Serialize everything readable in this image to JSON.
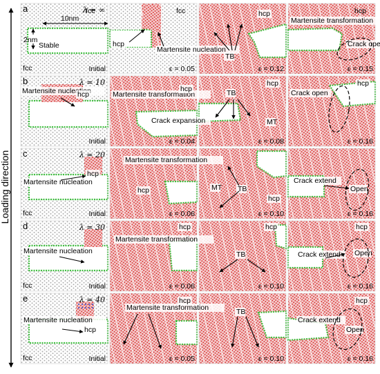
{
  "loading_direction": "Loading direction",
  "rows": [
    {
      "letter": "a",
      "lambda": "λ = ∞",
      "panels": [
        {
          "label": "Initial",
          "structure": "initial",
          "notes": [
            "fcc",
            "fcc",
            "Stable",
            "10nm",
            "2nm"
          ]
        },
        {
          "label": "ε = 0.05",
          "structure": "hcp",
          "notes": [
            "fcc",
            "hcp",
            "Martensite nucleation"
          ]
        },
        {
          "label": "ε = 0.12",
          "structure": "hcp",
          "notes": [
            "hcp",
            "TB"
          ]
        },
        {
          "label": "ε = 0.15",
          "structure": "hcp",
          "notes": [
            "hcp",
            "Martensite transformation",
            "Crack open"
          ]
        }
      ]
    },
    {
      "letter": "b",
      "lambda": "λ = 10",
      "panels": [
        {
          "label": "Initial",
          "structure": "initial",
          "notes": [
            "Martensite nucleation",
            "hcp"
          ]
        },
        {
          "label": "ε = 0.04",
          "structure": "hcp",
          "notes": [
            "Martensite transformation",
            "hcp",
            "Crack expansion"
          ]
        },
        {
          "label": "ε = 0.08",
          "structure": "hcp",
          "notes": [
            "TB",
            "hcp",
            "MT"
          ]
        },
        {
          "label": "ε = 0.16",
          "structure": "hcp",
          "notes": [
            "hcp",
            "Crack open"
          ]
        }
      ]
    },
    {
      "letter": "c",
      "lambda": "λ = 20",
      "panels": [
        {
          "label": "Initial",
          "structure": "initial",
          "notes": [
            "hcp",
            "Martensite nucleation",
            "fcc"
          ]
        },
        {
          "label": "ε = 0.06",
          "structure": "hcp",
          "notes": [
            "Martensite transformation",
            "hcp"
          ]
        },
        {
          "label": "ε = 0.10",
          "structure": "hcp",
          "notes": [
            "MT",
            "TB",
            "hcp"
          ]
        },
        {
          "label": "ε = 0.16",
          "structure": "hcp",
          "notes": [
            "Crack extend",
            "Open"
          ]
        }
      ]
    },
    {
      "letter": "d",
      "lambda": "λ = 30",
      "panels": [
        {
          "label": "Initial",
          "structure": "initial",
          "notes": [
            "Martensite nucleation",
            "fcc"
          ]
        },
        {
          "label": "ε = 0.06",
          "structure": "hcp",
          "notes": [
            "hcp",
            "Martensite transformation"
          ]
        },
        {
          "label": "ε = 0.10",
          "structure": "hcp",
          "notes": [
            "hcp",
            "TB"
          ]
        },
        {
          "label": "ε = 0.16",
          "structure": "hcp",
          "notes": [
            "hcp",
            "Crack extend",
            "Open"
          ]
        }
      ]
    },
    {
      "letter": "e",
      "lambda": "λ = 40",
      "panels": [
        {
          "label": "Initial",
          "structure": "initial",
          "notes": [
            "Martensite nucleation",
            "hcp",
            "fcc"
          ]
        },
        {
          "label": "ε = 0.05",
          "structure": "hcp",
          "notes": [
            "Martensite transformation",
            "hcp"
          ]
        },
        {
          "label": "ε = 0.10",
          "structure": "hcp",
          "notes": [
            "TB"
          ]
        },
        {
          "label": "ε = 0.16",
          "structure": "hcp",
          "notes": [
            "hcp",
            "Crack extend",
            "Open"
          ]
        }
      ]
    }
  ],
  "colors": {
    "fcc_atom": "#a8a8a8",
    "hcp_atom": "#d93a3a",
    "hcp_fill": "#f3c9c9",
    "boundary": "#3fbf3f",
    "bcc_atom": "#4a5fd0"
  }
}
